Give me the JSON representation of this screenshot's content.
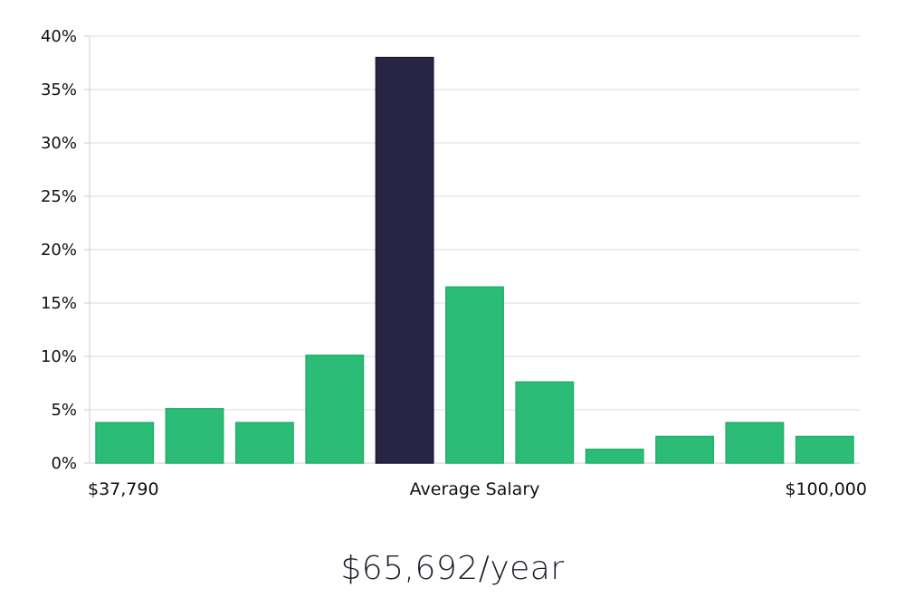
{
  "chart_data": {
    "type": "bar",
    "y_ticks": [
      "0%",
      "5%",
      "10%",
      "15%",
      "20%",
      "25%",
      "30%",
      "35%",
      "40%"
    ],
    "ylim": [
      0,
      40
    ],
    "values": [
      3.8,
      5.1,
      3.8,
      10.1,
      38.0,
      16.5,
      7.6,
      1.3,
      2.5,
      3.8,
      2.5
    ],
    "highlight_index": 4,
    "x_labels": {
      "left": "$37,790",
      "center": "Average Salary",
      "right": "$100,000"
    },
    "grid": true,
    "colors": {
      "bar": "#2bbd77",
      "bar_border": "#25ad6b",
      "highlight": "#282446",
      "highlight_border": "#1b1836",
      "grid": "#e3e3e3",
      "axis": "#cccccc"
    }
  },
  "salary_display": "$65,692/year"
}
